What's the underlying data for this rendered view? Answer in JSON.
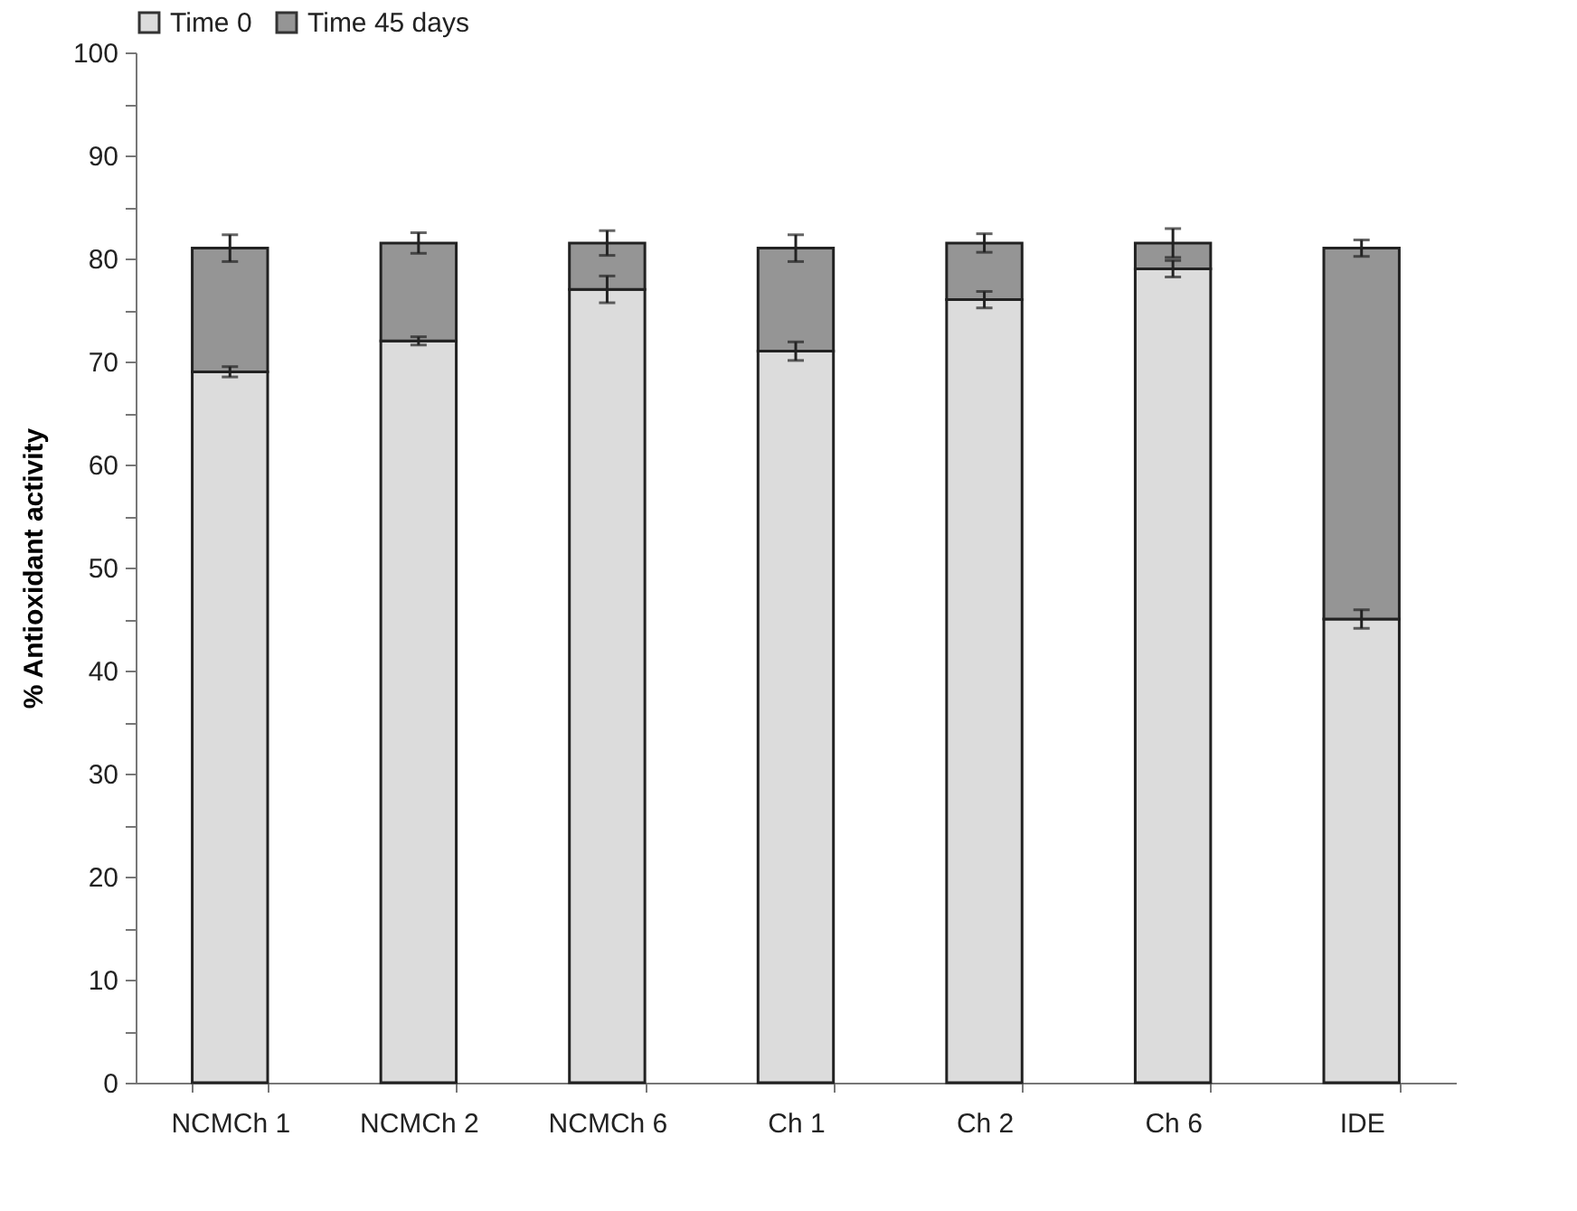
{
  "chart_data": {
    "type": "bar",
    "stacked": true,
    "ylabel": "% Antioxidant activity",
    "legend": "top",
    "categories": [
      "NCMCh 1",
      "NCMCh 2",
      "NCMCh 6",
      "Ch 1",
      "Ch 2",
      "Ch 6",
      "IDE"
    ],
    "series": [
      {
        "name": "Time 0",
        "color": "#dcdcdc",
        "values": [
          69,
          72,
          77,
          71,
          76,
          79,
          45
        ],
        "errors": [
          0.5,
          0.4,
          1.3,
          0.9,
          0.8,
          0.8,
          0.9
        ]
      },
      {
        "name": "Time 45 days",
        "color": "#959595",
        "values": [
          12,
          9.5,
          4.5,
          10,
          5.5,
          2.5,
          36
        ],
        "errors": [
          1.3,
          1,
          1.2,
          1.3,
          0.9,
          1.4,
          0.8
        ]
      }
    ],
    "ylim": [
      0,
      100
    ],
    "yticks": [
      0,
      {
        "value": 5,
        "label": null
      },
      10,
      {
        "value": 15,
        "label": null
      },
      20,
      {
        "value": 25,
        "label": null
      },
      30,
      {
        "value": 35,
        "label": null
      },
      40,
      {
        "value": 45,
        "label": null
      },
      50,
      {
        "value": 55,
        "label": null
      },
      60,
      {
        "value": 65,
        "label": null
      },
      70,
      {
        "value": 75,
        "label": null
      },
      80,
      {
        "value": 85,
        "label": null
      },
      90,
      {
        "value": 95,
        "label": null
      },
      100
    ]
  }
}
